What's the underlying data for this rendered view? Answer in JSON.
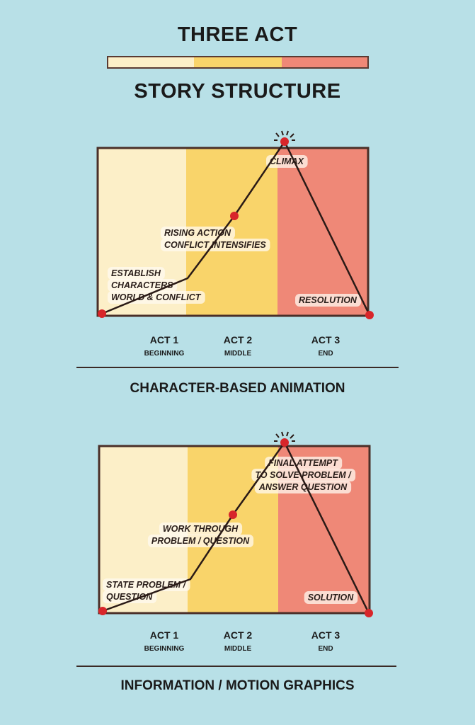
{
  "title_line1": "THREE ACT",
  "title_line2": "STORY STRUCTURE",
  "colors": {
    "background": "#b8e0e7",
    "act1": "#fcefc8",
    "act2": "#f9d46a",
    "act3": "#ef8877",
    "outline": "#4a2f28",
    "point": "#d8262a"
  },
  "diagrams": [
    {
      "caption": "CHARACTER-BASED ANIMATION",
      "labels": {
        "start": [
          "ESTABLISH",
          "CHARACTERS",
          "WORLD & CONFLICT"
        ],
        "middle": [
          "RISING ACTION",
          "CONFLICT INTENSIFIES"
        ],
        "peak": [
          "CLIMAX"
        ],
        "end": [
          "RESOLUTION"
        ]
      },
      "acts": [
        {
          "name": "ACT 1",
          "sub": "BEGINNING"
        },
        {
          "name": "ACT 2",
          "sub": "MIDDLE"
        },
        {
          "name": "ACT 3",
          "sub": "END"
        }
      ]
    },
    {
      "caption": "INFORMATION / MOTION GRAPHICS",
      "labels": {
        "start": [
          "STATE PROBLEM /",
          "QUESTION"
        ],
        "middle": [
          "WORK THROUGH",
          "PROBLEM / QUESTION"
        ],
        "peak": [
          "FINAL ATTEMPT",
          "TO SOLVE PROBLEM /",
          "ANSWER QUESTION"
        ],
        "end": [
          "SOLUTION"
        ]
      },
      "acts": [
        {
          "name": "ACT 1",
          "sub": "BEGINNING"
        },
        {
          "name": "ACT 2",
          "sub": "MIDDLE"
        },
        {
          "name": "ACT 3",
          "sub": "END"
        }
      ]
    }
  ]
}
